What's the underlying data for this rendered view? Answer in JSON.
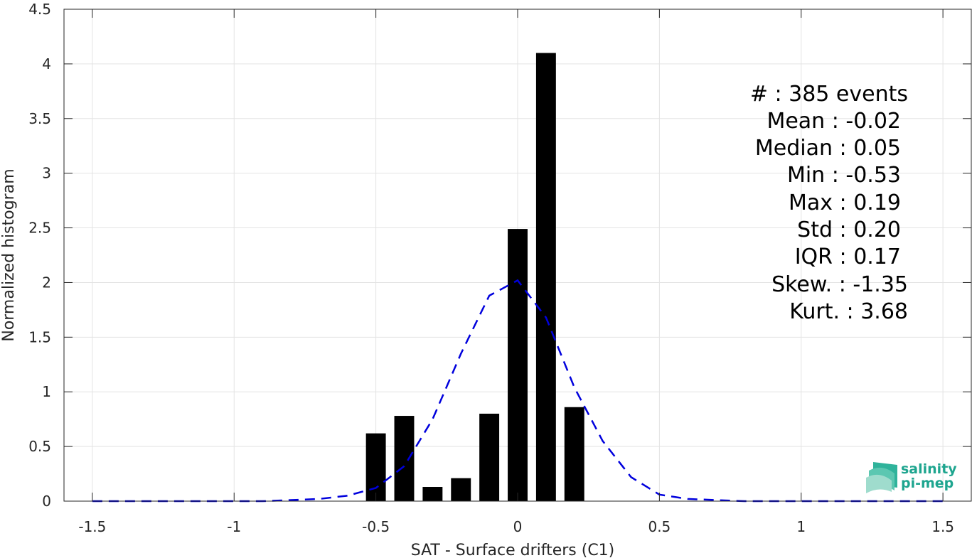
{
  "chart_data": {
    "type": "bar",
    "xlabel": "SAT - Surface drifters (C1)",
    "ylabel": "Normalized histogram",
    "xlim": [
      -1.6,
      1.6
    ],
    "ylim": [
      0,
      4.5
    ],
    "xticks": [
      -1.5,
      -1,
      -0.5,
      0,
      0.5,
      1,
      1.5
    ],
    "xtick_labels": [
      "-1.5",
      "-1",
      "-0.5",
      "0",
      "0.5",
      "1",
      "1.5"
    ],
    "yticks": [
      0,
      0.5,
      1,
      1.5,
      2,
      2.5,
      3,
      3.5,
      4,
      4.5
    ],
    "ytick_labels": [
      "0",
      "0.5",
      "1",
      "1.5",
      "2",
      "2.5",
      "3",
      "3.5",
      "4",
      "4.5"
    ],
    "grid": true,
    "bar_color": "#000000",
    "bar_width": 0.07,
    "bars": {
      "x": [
        -0.5,
        -0.4,
        -0.3,
        -0.2,
        -0.1,
        0.0,
        0.1,
        0.2
      ],
      "values": [
        0.62,
        0.78,
        0.13,
        0.21,
        0.8,
        2.49,
        4.1,
        0.86
      ]
    },
    "fit_curve": {
      "style": "dashed",
      "color": "#0000dd",
      "x": [
        -1.5,
        -1.4,
        -1.3,
        -1.2,
        -1.1,
        -1.0,
        -0.9,
        -0.8,
        -0.7,
        -0.6,
        -0.5,
        -0.4,
        -0.3,
        -0.2,
        -0.1,
        0.0,
        0.1,
        0.2,
        0.3,
        0.4,
        0.5,
        0.6,
        0.7,
        0.8,
        0.9,
        1.0,
        1.1,
        1.2,
        1.3,
        1.4,
        1.5
      ],
      "y": [
        0,
        0,
        0,
        0,
        0,
        0,
        0,
        0.01,
        0.02,
        0.05,
        0.12,
        0.32,
        0.75,
        1.35,
        1.88,
        2.02,
        1.68,
        1.04,
        0.55,
        0.22,
        0.06,
        0.02,
        0.01,
        0,
        0,
        0,
        0,
        0,
        0,
        0,
        0
      ]
    },
    "annotations": [
      "#  : 385 events",
      "Mean : -0.02",
      "Median : 0.05",
      "Min : -0.53",
      "Max : 0.19",
      "Std : 0.20",
      "IQR : 0.17",
      "Skew. : -1.35",
      "Kurt. : 3.68"
    ]
  },
  "logo": {
    "line1": "salinity",
    "line2": "pi-mep",
    "color": "#1ea58f"
  }
}
